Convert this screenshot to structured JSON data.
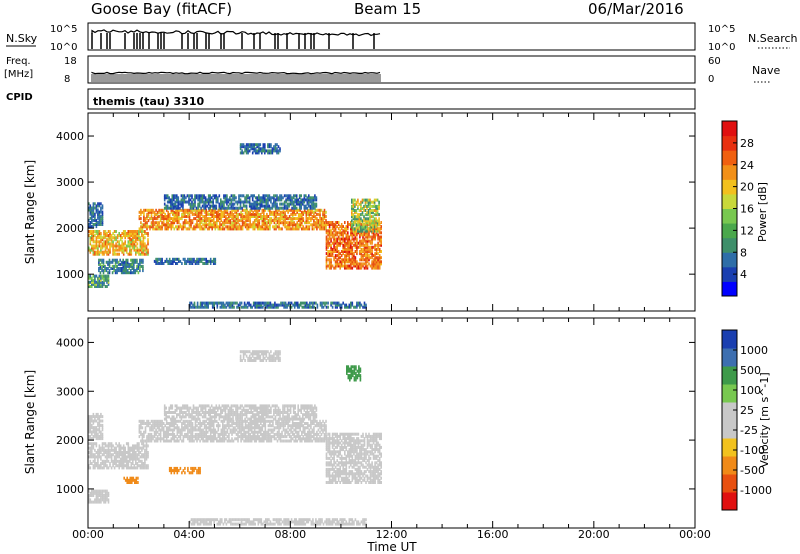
{
  "header": {
    "station": "Goose Bay (fitACF)",
    "beam": "Beam 15",
    "date": "06/Mar/2016"
  },
  "status_panels": {
    "nsky_label": "N.Sky",
    "nsearch_label": "N.Search",
    "noise_ticks": [
      "10^5",
      "10^0"
    ],
    "freq_label_1": "Freq.",
    "freq_label_2": "[MHz]",
    "freq_ticks": [
      "18",
      "8"
    ],
    "nave_label": "Nave",
    "nave_ticks": [
      "60",
      "0"
    ],
    "cpid_label": "CPID",
    "cpid_value": "themis (tau) 3310"
  },
  "colorbars": {
    "power": {
      "label": "Power [dB]",
      "ticks": [
        "28",
        "24",
        "20",
        "16",
        "12",
        "8",
        "4"
      ],
      "colors": [
        "#0000ff",
        "#1a3fb0",
        "#2e6ea8",
        "#3e8f6a",
        "#4aa84c",
        "#78c850",
        "#c8d83a",
        "#f2c01e",
        "#f29018",
        "#f06010",
        "#e83010",
        "#e01010"
      ]
    },
    "velocity": {
      "label": "Velocity [m s^-1]",
      "ticks": [
        "1000",
        "500",
        "100",
        "25",
        "-25",
        "-100",
        "-500",
        "-1000"
      ],
      "colors": [
        "#e01010",
        "#e85010",
        "#f08a18",
        "#f2c21e",
        "#c8c8c8",
        "#c8c8c8",
        "#78c850",
        "#3e9a4a",
        "#3d6fb0",
        "#1a3fb0"
      ]
    }
  },
  "chart_data": [
    {
      "type": "heatmap",
      "name": "Power",
      "xlabel": "",
      "ylabel": "Slant Range [km]",
      "xlim": [
        0,
        24
      ],
      "ylim": [
        200,
        4500
      ],
      "xticks": [
        "00:00",
        "04:00",
        "08:00",
        "12:00",
        "16:00",
        "20:00",
        "00:00"
      ],
      "yticks": [
        1000,
        2000,
        3000,
        4000
      ],
      "value_label": "Power [dB]",
      "echo_bands": [
        {
          "t0": 0.0,
          "t1": 0.8,
          "r0": 700,
          "r1": 950,
          "value": 10
        },
        {
          "t0": 0.0,
          "t1": 0.6,
          "r0": 2000,
          "r1": 2500,
          "value": 6
        },
        {
          "t0": 0.0,
          "t1": 2.4,
          "r0": 1400,
          "r1": 1900,
          "value": 18
        },
        {
          "t0": 0.4,
          "t1": 2.2,
          "r0": 1000,
          "r1": 1300,
          "value": 8
        },
        {
          "t0": 2.0,
          "t1": 9.4,
          "r0": 1950,
          "r1": 2400,
          "value": 20
        },
        {
          "t0": 3.0,
          "t1": 9.0,
          "r0": 2400,
          "r1": 2700,
          "value": 6
        },
        {
          "t0": 6.0,
          "t1": 7.6,
          "r0": 3600,
          "r1": 3800,
          "value": 6
        },
        {
          "t0": 9.4,
          "t1": 11.6,
          "r0": 1100,
          "r1": 2100,
          "value": 22
        },
        {
          "t0": 10.4,
          "t1": 11.5,
          "r0": 1900,
          "r1": 2600,
          "value": 14
        },
        {
          "t0": 2.6,
          "t1": 5.0,
          "r0": 1200,
          "r1": 1300,
          "value": 6
        },
        {
          "t0": 4.0,
          "t1": 11.0,
          "r0": 250,
          "r1": 350,
          "value": 6
        }
      ]
    },
    {
      "type": "heatmap",
      "name": "Velocity",
      "xlabel": "Time UT",
      "ylabel": "Slant Range [km]",
      "xlim": [
        0,
        24
      ],
      "ylim": [
        200,
        4500
      ],
      "xticks": [
        "00:00",
        "04:00",
        "08:00",
        "12:00",
        "16:00",
        "20:00",
        "00:00"
      ],
      "yticks": [
        1000,
        2000,
        3000,
        4000
      ],
      "value_label": "Velocity [m s^-1]",
      "echo_bands": [
        {
          "t0": 0.0,
          "t1": 0.8,
          "r0": 700,
          "r1": 950,
          "value": 0
        },
        {
          "t0": 0.0,
          "t1": 0.6,
          "r0": 2000,
          "r1": 2500,
          "value": 0
        },
        {
          "t0": 0.0,
          "t1": 2.4,
          "r0": 1400,
          "r1": 1900,
          "value": 0
        },
        {
          "t0": 2.0,
          "t1": 9.4,
          "r0": 1950,
          "r1": 2400,
          "value": 0
        },
        {
          "t0": 3.0,
          "t1": 9.0,
          "r0": 2400,
          "r1": 2700,
          "value": 0
        },
        {
          "t0": 6.0,
          "t1": 7.6,
          "r0": 3600,
          "r1": 3800,
          "value": 0
        },
        {
          "t0": 9.4,
          "t1": 11.6,
          "r0": 1100,
          "r1": 2100,
          "value": 0
        },
        {
          "t0": 10.2,
          "t1": 10.8,
          "r0": 3200,
          "r1": 3500,
          "value": 150
        },
        {
          "t0": 3.2,
          "t1": 4.4,
          "r0": 1300,
          "r1": 1400,
          "value": -150
        },
        {
          "t0": 1.4,
          "t1": 2.0,
          "r0": 1100,
          "r1": 1200,
          "value": -120
        },
        {
          "t0": 4.0,
          "t1": 11.0,
          "r0": 250,
          "r1": 350,
          "value": 0
        }
      ]
    }
  ]
}
